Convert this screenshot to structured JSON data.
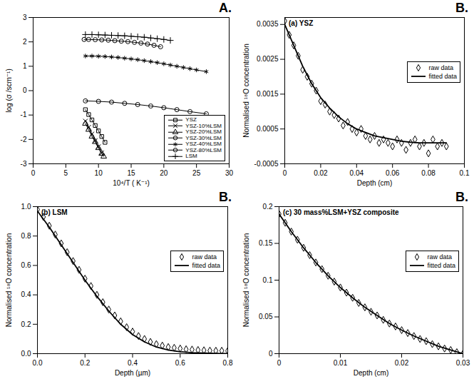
{
  "chart_data": [
    {
      "type": "line",
      "annotations": [
        "A."
      ],
      "x_label": "10⁴/T ( K⁻¹)",
      "y_label": "log (σ /scm⁻¹)",
      "xlim": [
        0,
        30
      ],
      "xticks": [
        0,
        5,
        10,
        15,
        20,
        25,
        30
      ],
      "ylim": [
        -3,
        3
      ],
      "yticks": [
        -3,
        -2,
        -1,
        0,
        1,
        2,
        3
      ],
      "legend": "lower right",
      "series": [
        {
          "name": "YSZ",
          "color": "#000000",
          "marker": "square",
          "x": [
            8,
            8.5,
            9,
            9.5,
            10,
            10.5,
            11
          ],
          "values": [
            -0.78,
            -0.98,
            -1.2,
            -1.43,
            -1.65,
            -1.88,
            -2.12
          ]
        },
        {
          "name": "YSZ-10%LSM",
          "color": "#000000",
          "marker": "times",
          "x": [
            8,
            8.5,
            9,
            9.5,
            10,
            10.5
          ],
          "values": [
            -1.25,
            -1.5,
            -1.78,
            -2.05,
            -2.3,
            -2.55
          ]
        },
        {
          "name": "YSZ-20%LSM",
          "color": "#000000",
          "marker": "triangle",
          "x": [
            8,
            8.5,
            9,
            9.5,
            10,
            10.5,
            10.8
          ],
          "values": [
            -1.35,
            -1.6,
            -1.88,
            -2.1,
            -2.35,
            -2.58,
            -2.7
          ]
        },
        {
          "name": "YSZ-30%LSM",
          "color": "#000000",
          "marker": "circle",
          "x": [
            8,
            10,
            12,
            14,
            16,
            18,
            20,
            22,
            24,
            26.5
          ],
          "values": [
            -0.42,
            -0.44,
            -0.47,
            -0.52,
            -0.57,
            -0.63,
            -0.7,
            -0.78,
            -0.86,
            -0.95
          ]
        },
        {
          "name": "YSZ-40%LSM",
          "color": "#000000",
          "marker": "asterisk",
          "x": [
            8,
            9,
            10,
            11,
            12,
            13,
            14,
            15,
            16,
            17,
            18,
            19,
            20,
            21,
            22,
            23,
            24,
            25,
            26.5
          ],
          "values": [
            1.42,
            1.42,
            1.41,
            1.4,
            1.38,
            1.36,
            1.33,
            1.3,
            1.27,
            1.23,
            1.19,
            1.15,
            1.1,
            1.05,
            1.0,
            0.95,
            0.9,
            0.85,
            0.78
          ]
        },
        {
          "name": "YSZ-80%LSM",
          "color": "#000000",
          "marker": "circle",
          "x": [
            7.8,
            8.5,
            9.5,
            10.5,
            11.5,
            12.5,
            13.5,
            14.5,
            15.5,
            16.5,
            17.5,
            18.5,
            19.5
          ],
          "values": [
            2.1,
            2.1,
            2.09,
            2.08,
            2.07,
            2.05,
            2.03,
            2.01,
            1.98,
            1.95,
            1.91,
            1.86,
            1.8
          ]
        },
        {
          "name": "LSM",
          "color": "#000000",
          "marker": "plus",
          "x": [
            8,
            9,
            10,
            11,
            12,
            13,
            14,
            15,
            16,
            17,
            18,
            19,
            20,
            21
          ],
          "values": [
            2.3,
            2.3,
            2.29,
            2.28,
            2.27,
            2.26,
            2.25,
            2.23,
            2.21,
            2.19,
            2.16,
            2.13,
            2.1,
            2.06
          ]
        }
      ]
    },
    {
      "type": "line",
      "title": "(a) YSZ",
      "annotations": [
        "B."
      ],
      "x_label": "Depth (cm)",
      "y_label": "Normalised ¹⁸O concentration",
      "xlim": [
        0,
        0.1
      ],
      "xticks": [
        0,
        0.02,
        0.04,
        0.06,
        0.08,
        0.1
      ],
      "ylim": [
        -0.0005,
        0.0037
      ],
      "yticks": [
        -0.0005,
        0.0005,
        0.0015,
        0.0025,
        0.0035
      ],
      "legend": "center right",
      "series": [
        {
          "name": "raw data",
          "type": "scatter",
          "color": "#000000",
          "marker": "diamond",
          "x": [
            0,
            0.0025,
            0.005,
            0.0075,
            0.01,
            0.0125,
            0.015,
            0.0175,
            0.02,
            0.0225,
            0.025,
            0.0275,
            0.03,
            0.0325,
            0.035,
            0.0375,
            0.04,
            0.0425,
            0.045,
            0.0475,
            0.05,
            0.0525,
            0.055,
            0.0575,
            0.06,
            0.0625,
            0.065,
            0.0675,
            0.07,
            0.0725,
            0.075,
            0.0775,
            0.08,
            0.0825,
            0.085,
            0.0875,
            0.09
          ],
          "values": [
            0.0036,
            0.0032,
            0.0029,
            0.0026,
            0.0022,
            0.002,
            0.0018,
            0.0016,
            0.0013,
            0.0012,
            0.001,
            0.0009,
            0.0008,
            0.0006,
            0.0007,
            0.0005,
            0.0004,
            0.0005,
            0.0003,
            0.0002,
            0.0003,
            0.0001,
            0.0002,
            0.0001,
            0,
            0.0002,
            0.0001,
            -0.0001,
            0.0001,
            0.0002,
            0,
            0.0001,
            -0.0002,
            0.0002,
            0,
            0.0001,
            0
          ]
        },
        {
          "name": "fitted data",
          "type": "line",
          "color": "#000000",
          "line_style": "solid",
          "x": [
            0,
            0.005,
            0.01,
            0.015,
            0.02,
            0.025,
            0.03,
            0.035,
            0.04,
            0.045,
            0.05,
            0.055,
            0.06,
            0.065,
            0.07,
            0.075,
            0.08,
            0.085,
            0.09
          ],
          "values": [
            0.0035,
            0.0029,
            0.0023,
            0.0018,
            0.0014,
            0.0011,
            0.00085,
            0.00065,
            0.0005,
            0.0004,
            0.0003,
            0.00025,
            0.0002,
            0.00015,
            0.00012,
            0.0001,
            0.0001,
            0.0001,
            0.0001
          ]
        }
      ]
    },
    {
      "type": "line",
      "title": "(b) LSM",
      "annotations": [
        "B."
      ],
      "x_label": "Depth (µm)",
      "y_label": "Normalised ¹⁸O concentration",
      "xlim": [
        0,
        0.8
      ],
      "xticks": [
        {
          "value": 0,
          "label": "0.0"
        },
        {
          "value": 0.2,
          "label": "0.2"
        },
        {
          "value": 0.4,
          "label": "0.4"
        },
        {
          "value": 0.6,
          "label": "0.6"
        },
        {
          "value": 0.8,
          "label": "0.8"
        }
      ],
      "ylim": [
        0,
        1
      ],
      "yticks": [
        {
          "value": 0,
          "label": "0.0"
        },
        {
          "value": 0.2,
          "label": "0.2"
        },
        {
          "value": 0.4,
          "label": "0.4"
        },
        {
          "value": 0.6,
          "label": "0.6"
        },
        {
          "value": 0.8,
          "label": "0.8"
        },
        {
          "value": 1,
          "label": "1.0"
        }
      ],
      "legend": "center right",
      "series": [
        {
          "name": "raw data",
          "type": "scatter",
          "color": "#000000",
          "marker": "diamond",
          "x": [
            0,
            0.025,
            0.05,
            0.075,
            0.1,
            0.125,
            0.15,
            0.175,
            0.2,
            0.225,
            0.25,
            0.275,
            0.3,
            0.325,
            0.35,
            0.375,
            0.4,
            0.425,
            0.45,
            0.475,
            0.5,
            0.525,
            0.55,
            0.575,
            0.6,
            0.625,
            0.65,
            0.675,
            0.7,
            0.725,
            0.75,
            0.775,
            0.8
          ],
          "values": [
            0.98,
            0.93,
            0.87,
            0.81,
            0.75,
            0.69,
            0.63,
            0.57,
            0.51,
            0.46,
            0.4,
            0.35,
            0.3,
            0.26,
            0.22,
            0.18,
            0.15,
            0.12,
            0.1,
            0.08,
            0.065,
            0.055,
            0.045,
            0.04,
            0.035,
            0.03,
            0.028,
            0.025,
            0.023,
            0.021,
            0.02,
            0.02,
            0.019
          ]
        },
        {
          "name": "fitted data",
          "type": "line",
          "color": "#000000",
          "line_style": "solid",
          "x": [
            0,
            0.05,
            0.1,
            0.15,
            0.2,
            0.25,
            0.3,
            0.35,
            0.4,
            0.45,
            0.5,
            0.55,
            0.6,
            0.65,
            0.7,
            0.75,
            0.8
          ],
          "values": [
            0.97,
            0.86,
            0.74,
            0.62,
            0.5,
            0.39,
            0.29,
            0.2,
            0.13,
            0.08,
            0.045,
            0.025,
            0.013,
            0.007,
            0.004,
            0.002,
            0.001
          ]
        }
      ]
    },
    {
      "type": "line",
      "title": "(c) 30 mass%LSM+YSZ composite",
      "annotations": [
        "B."
      ],
      "x_label": "Depth (cm)",
      "y_label": "Normalised ¹⁸O concentration",
      "xlim": [
        0,
        0.03
      ],
      "xticks": [
        0,
        0.01,
        0.02,
        0.03
      ],
      "ylim": [
        0,
        0.2
      ],
      "yticks": [
        0,
        0.05,
        0.1,
        0.15,
        0.2
      ],
      "legend": "center right",
      "series": [
        {
          "name": "raw data",
          "type": "scatter",
          "color": "#000000",
          "marker": "diamond",
          "x": [
            0,
            0.001,
            0.002,
            0.003,
            0.004,
            0.005,
            0.006,
            0.007,
            0.008,
            0.009,
            0.01,
            0.011,
            0.012,
            0.013,
            0.014,
            0.015,
            0.016,
            0.017,
            0.018,
            0.019,
            0.02,
            0.021,
            0.022,
            0.023,
            0.024,
            0.025,
            0.026,
            0.027,
            0.028,
            0.029,
            0.03
          ],
          "values": [
            0.19,
            0.178,
            0.166,
            0.155,
            0.144,
            0.134,
            0.124,
            0.115,
            0.106,
            0.098,
            0.09,
            0.083,
            0.076,
            0.069,
            0.063,
            0.057,
            0.052,
            0.046,
            0.041,
            0.037,
            0.032,
            0.028,
            0.024,
            0.02,
            0.017,
            0.013,
            0.01,
            0.007,
            0.005,
            0.002,
            0
          ]
        },
        {
          "name": "fitted data",
          "type": "line",
          "color": "#000000",
          "line_style": "solid",
          "x": [
            0,
            0.002,
            0.004,
            0.006,
            0.008,
            0.01,
            0.012,
            0.014,
            0.016,
            0.018,
            0.02,
            0.022,
            0.024,
            0.026,
            0.028,
            0.03
          ],
          "values": [
            0.19,
            0.166,
            0.144,
            0.124,
            0.106,
            0.09,
            0.076,
            0.063,
            0.052,
            0.041,
            0.032,
            0.024,
            0.017,
            0.01,
            0.005,
            0
          ]
        }
      ]
    }
  ]
}
